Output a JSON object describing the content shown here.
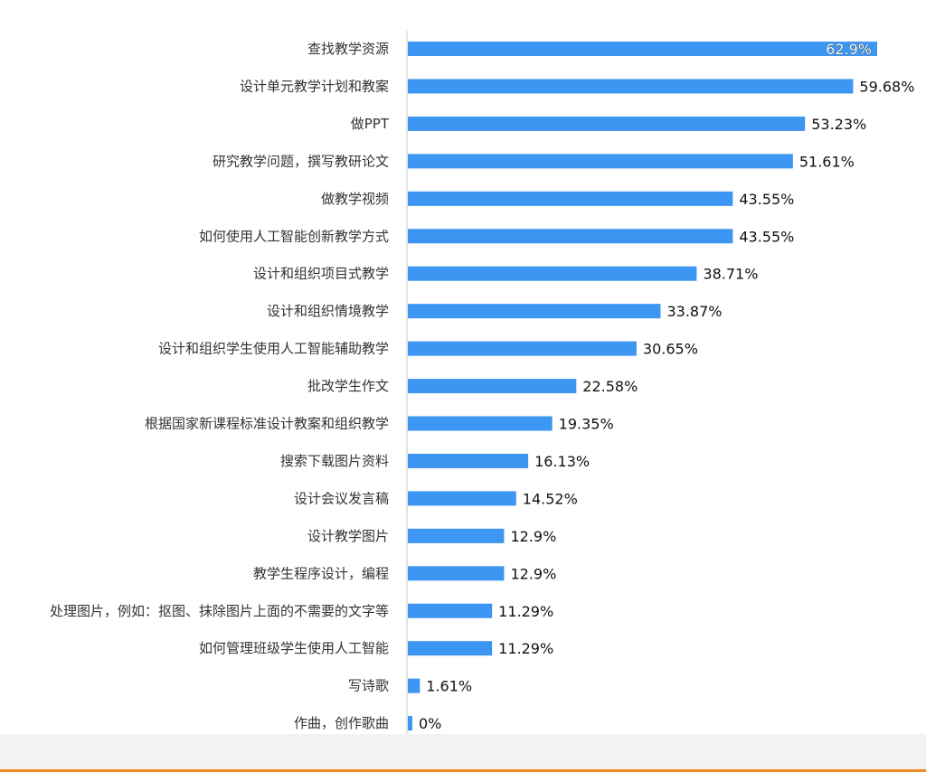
{
  "colors": {
    "bar": "#3d96f2",
    "axis": "#cccccc",
    "footer_band": "#f2f2f2",
    "footer_line": "#f08a24"
  },
  "chart_data": {
    "type": "bar",
    "orientation": "horizontal",
    "categories": [
      "查找教学资源",
      "设计单元教学计划和教案",
      "做PPT",
      "研究教学问题，撰写教研论文",
      "做教学视频",
      "如何使用人工智能创新教学方式",
      "设计和组织项目式教学",
      "设计和组织情境教学",
      "设计和组织学生使用人工智能辅助教学",
      "批改学生作文",
      "根据国家新课程标准设计教案和组织教学",
      "搜索下载图片资料",
      "设计会议发言稿",
      "设计教学图片",
      "教学生程序设计，编程",
      "处理图片，例如：抠图、抹除图片上面的不需要的文字等",
      "如何管理班级学生使用人工智能",
      "写诗歌",
      "作曲，创作歌曲"
    ],
    "values": [
      62.9,
      59.68,
      53.23,
      51.61,
      43.55,
      43.55,
      38.71,
      33.87,
      30.65,
      22.58,
      19.35,
      16.13,
      14.52,
      12.9,
      12.9,
      11.29,
      11.29,
      1.61,
      0
    ],
    "value_labels": [
      "62.9%",
      "59.68%",
      "53.23%",
      "51.61%",
      "43.55%",
      "43.55%",
      "38.71%",
      "33.87%",
      "30.65%",
      "22.58%",
      "19.35%",
      "16.13%",
      "14.52%",
      "12.9%",
      "12.9%",
      "11.29%",
      "11.29%",
      "1.61%",
      "0%"
    ],
    "xlim": [
      0,
      62.9
    ],
    "grid": false,
    "legend": "none"
  }
}
